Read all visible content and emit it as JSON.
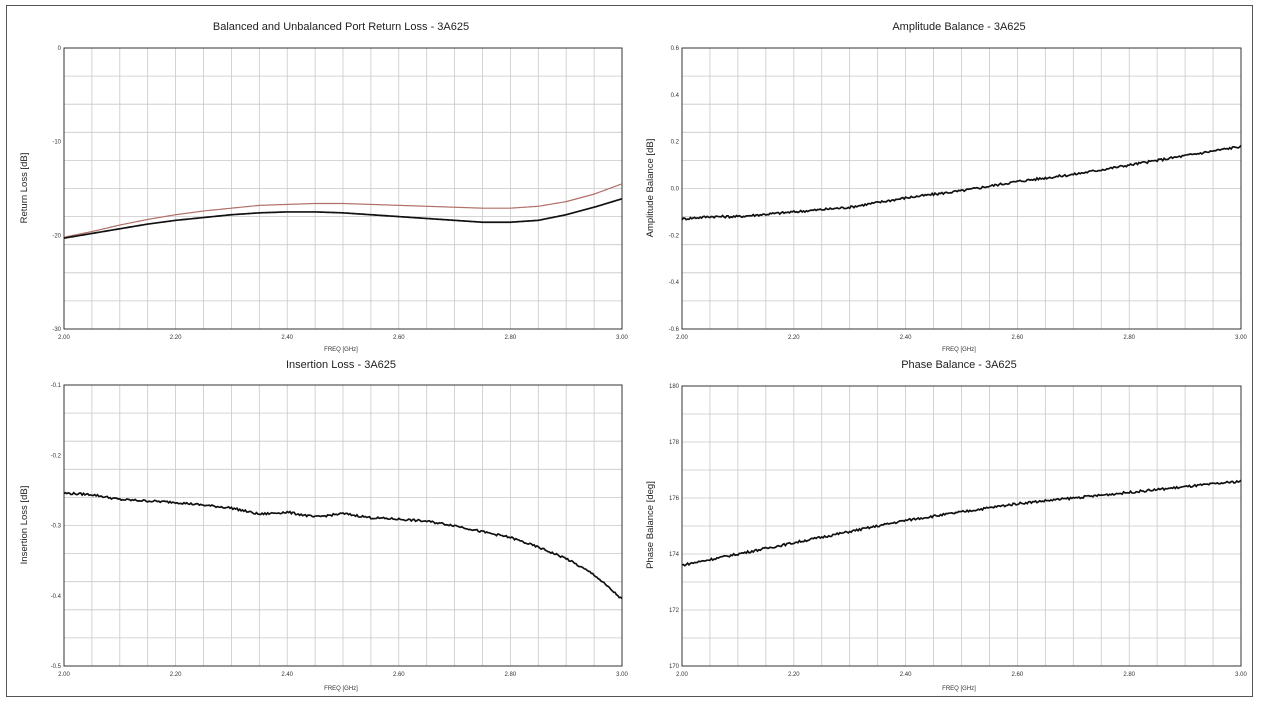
{
  "colors": {
    "primary_series": "#111111",
    "secondary_series": "#b07068",
    "grid": "#c8c8c8",
    "plot_border": "#333333"
  },
  "chart_data": [
    {
      "type": "line",
      "title": "Balanced and Unbalanced Port Return Loss - 3A625",
      "xlabel": "FREQ [GHz]",
      "ylabel": "Return Loss [dB]",
      "xlim": [
        2.0,
        3.0
      ],
      "ylim": [
        -30,
        0
      ],
      "y_inverted": true,
      "x_ticks": [
        "2.00",
        "2.20",
        "2.40",
        "2.60",
        "2.80",
        "3.00"
      ],
      "y_ticks": [
        "0",
        "-10",
        "-20",
        "-30"
      ],
      "grid": true,
      "noise": 0,
      "series": [
        {
          "color_key": "secondary_series",
          "x": [
            2.0,
            2.05,
            2.1,
            2.15,
            2.2,
            2.25,
            2.3,
            2.35,
            2.4,
            2.45,
            2.5,
            2.55,
            2.6,
            2.65,
            2.7,
            2.75,
            2.8,
            2.85,
            2.9,
            2.95,
            3.0
          ],
          "values": [
            -20.2,
            -19.6,
            -18.9,
            -18.3,
            -17.8,
            -17.4,
            -17.1,
            -16.8,
            -16.7,
            -16.6,
            -16.6,
            -16.7,
            -16.8,
            -16.9,
            -17.0,
            -17.1,
            -17.1,
            -16.9,
            -16.4,
            -15.6,
            -14.5
          ]
        },
        {
          "color_key": "primary_series",
          "x": [
            2.0,
            2.05,
            2.1,
            2.15,
            2.2,
            2.25,
            2.3,
            2.35,
            2.4,
            2.45,
            2.5,
            2.55,
            2.6,
            2.65,
            2.7,
            2.75,
            2.8,
            2.85,
            2.9,
            2.95,
            3.0
          ],
          "values": [
            -20.3,
            -19.8,
            -19.3,
            -18.8,
            -18.4,
            -18.1,
            -17.8,
            -17.6,
            -17.5,
            -17.5,
            -17.6,
            -17.8,
            -18.0,
            -18.2,
            -18.4,
            -18.6,
            -18.6,
            -18.4,
            -17.8,
            -17.0,
            -16.1
          ]
        }
      ]
    },
    {
      "type": "line",
      "title": "Amplitude Balance - 3A625",
      "xlabel": "FREQ [GHz]",
      "ylabel": "Amplitude Balance [dB]",
      "xlim": [
        2.0,
        3.0
      ],
      "ylim": [
        -0.6,
        0.6
      ],
      "x_ticks": [
        "2.00",
        "2.20",
        "2.40",
        "2.60",
        "2.80",
        "3.00"
      ],
      "y_ticks": [
        "0.6",
        "0.4",
        "0.2",
        "0.0",
        "-0.2",
        "-0.4",
        "-0.6"
      ],
      "grid": true,
      "noise": 0.005,
      "series": [
        {
          "color_key": "primary_series",
          "x": [
            2.0,
            2.05,
            2.1,
            2.15,
            2.2,
            2.3,
            2.4,
            2.5,
            2.6,
            2.7,
            2.8,
            2.9,
            3.0
          ],
          "values": [
            -0.13,
            -0.12,
            -0.12,
            -0.11,
            -0.1,
            -0.08,
            -0.04,
            -0.01,
            0.03,
            0.06,
            0.1,
            0.14,
            0.18
          ]
        }
      ]
    },
    {
      "type": "line",
      "title": "Insertion Loss - 3A625",
      "xlabel": "FREQ [GHz]",
      "ylabel": "Insertion Loss [dB]",
      "xlim": [
        2.0,
        3.0
      ],
      "ylim": [
        -0.5,
        -0.1
      ],
      "x_ticks": [
        "2.00",
        "2.20",
        "2.40",
        "2.60",
        "2.80",
        "3.00"
      ],
      "y_ticks": [
        "-0.1",
        "-0.2",
        "-0.3",
        "-0.4",
        "-0.5"
      ],
      "grid": true,
      "noise": 0.0015,
      "series": [
        {
          "color_key": "primary_series",
          "x": [
            2.0,
            2.05,
            2.1,
            2.2,
            2.3,
            2.35,
            2.4,
            2.45,
            2.5,
            2.55,
            2.6,
            2.65,
            2.7,
            2.75,
            2.8,
            2.85,
            2.9,
            2.95,
            3.0
          ],
          "values": [
            -0.254,
            -0.256,
            -0.263,
            -0.267,
            -0.275,
            -0.284,
            -0.281,
            -0.288,
            -0.283,
            -0.289,
            -0.291,
            -0.294,
            -0.3,
            -0.309,
            -0.317,
            -0.331,
            -0.347,
            -0.37,
            -0.405
          ]
        }
      ]
    },
    {
      "type": "line",
      "title": "Phase Balance - 3A625",
      "xlabel": "FREQ [GHz]",
      "ylabel": "Phase Balance [deg]",
      "xlim": [
        2.0,
        3.0
      ],
      "ylim": [
        170,
        180
      ],
      "x_ticks": [
        "2.00",
        "2.20",
        "2.40",
        "2.60",
        "2.80",
        "3.00"
      ],
      "y_ticks": [
        "180",
        "178",
        "176",
        "174",
        "172",
        "170"
      ],
      "grid": true,
      "noise": 0.04,
      "series": [
        {
          "color_key": "primary_series",
          "x": [
            2.0,
            2.05,
            2.1,
            2.2,
            2.3,
            2.4,
            2.5,
            2.6,
            2.7,
            2.8,
            2.9,
            3.0
          ],
          "values": [
            173.6,
            173.8,
            174.0,
            174.4,
            174.8,
            175.2,
            175.5,
            175.8,
            176.0,
            176.2,
            176.4,
            176.6
          ]
        }
      ]
    }
  ]
}
